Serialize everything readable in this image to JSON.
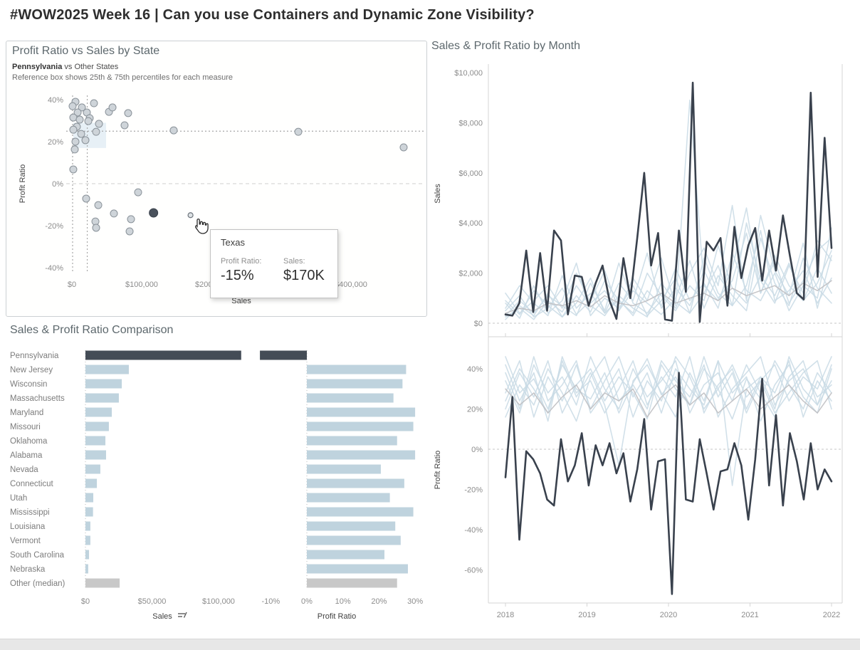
{
  "page": {
    "title": "#WOW2025 Week 16 | Can you use Containers and Dynamic Zone Visibility?"
  },
  "colors": {
    "dark_slate": "#444c56",
    "dark_line": "#39414d",
    "light_blue_bar": "#bfd3de",
    "light_blue_line": "#c9dbe5",
    "gray_bar": "#c8c8c8",
    "gray_line": "#bfbfc2",
    "ref_box": "#e7f0f6",
    "tick_text": "#8c8c8c",
    "label_text": "#7c7c7c",
    "axis_line": "#d5d5d5",
    "dot_fill": "#ced4d9",
    "dot_stroke": "#8a9299"
  },
  "scatter_panel": {
    "title": "Profit Ratio vs Sales by State",
    "subtitle_bold": "Pennsylvania",
    "subtitle_rest": " vs Other States",
    "note": "Reference box shows 25th & 75th percentiles for each measure",
    "x_axis": {
      "label": "Sales",
      "ticks": [
        "$0",
        "$100,000",
        "$200,000",
        "$300,000",
        "$400,000"
      ]
    },
    "y_axis": {
      "label": "Profit Ratio",
      "ticks": [
        "40%",
        "20%",
        "0%",
        "-20%",
        "-40%"
      ]
    }
  },
  "tooltip": {
    "title": "Texas",
    "fields": [
      {
        "label": "Profit Ratio:",
        "value": "-15%"
      },
      {
        "label": "Sales:",
        "value": "$170K"
      }
    ]
  },
  "bar_panel": {
    "title": "Sales & Profit Ratio Comparison",
    "sales_axis": {
      "label": "Sales",
      "ticks": [
        "$0",
        "$50,000",
        "$100,000"
      ]
    },
    "profit_axis": {
      "label": "Profit Ratio",
      "ticks": [
        "-10%",
        "0%",
        "10%",
        "20%",
        "30%"
      ]
    }
  },
  "month_panel": {
    "title": "Sales & Profit Ratio by Month",
    "sales_axis": {
      "label": "Sales",
      "ticks": [
        "$10,000",
        "$8,000",
        "$6,000",
        "$4,000",
        "$2,000",
        "$0"
      ]
    },
    "profit_axis": {
      "label": "Profit Ratio",
      "ticks": [
        "40%",
        "20%",
        "0%",
        "-20%",
        "-40%",
        "-60%"
      ]
    },
    "x_axis": {
      "ticks": [
        "2018",
        "2019",
        "2020",
        "2021",
        "2022"
      ]
    }
  },
  "chart_data": [
    {
      "type": "scatter",
      "title": "Profit Ratio vs Sales by State",
      "xlabel": "Sales",
      "ylabel": "Profit Ratio",
      "xlim": [
        -20000,
        490000
      ],
      "ylim": [
        -48,
        46
      ],
      "x_ticks": [
        0,
        100000,
        200000,
        300000,
        400000
      ],
      "y_ticks": [
        40,
        20,
        0,
        -20,
        -40
      ],
      "ref_box": {
        "sales": [
          2000,
          49000
        ],
        "profit": [
          17,
          29
        ]
      },
      "ref_lines": {
        "profit": [
          25,
          0
        ],
        "sales": [
          1000,
          22000
        ]
      },
      "points": [
        {
          "sales": 5100,
          "profit": 39.0,
          "kind": "other"
        },
        {
          "sales": 1000,
          "profit": 36.9,
          "kind": "other"
        },
        {
          "sales": 31600,
          "profit": 38.3,
          "kind": "other"
        },
        {
          "sales": 14300,
          "profit": 36.3,
          "kind": "other"
        },
        {
          "sales": 21400,
          "profit": 33.9,
          "kind": "other"
        },
        {
          "sales": 8200,
          "profit": 33.9,
          "kind": "other"
        },
        {
          "sales": 53100,
          "profit": 34.2,
          "kind": "other"
        },
        {
          "sales": 58200,
          "profit": 36.3,
          "kind": "other"
        },
        {
          "sales": 80600,
          "profit": 33.6,
          "kind": "other"
        },
        {
          "sales": 2000,
          "profit": 31.5,
          "kind": "other"
        },
        {
          "sales": 11200,
          "profit": 30.5,
          "kind": "other"
        },
        {
          "sales": 25500,
          "profit": 31.2,
          "kind": "other"
        },
        {
          "sales": 23500,
          "profit": 29.8,
          "kind": "other"
        },
        {
          "sales": 7100,
          "profit": 27.1,
          "kind": "other"
        },
        {
          "sales": 2000,
          "profit": 25.7,
          "kind": "other"
        },
        {
          "sales": 13300,
          "profit": 23.7,
          "kind": "other"
        },
        {
          "sales": 19400,
          "profit": 20.7,
          "kind": "other"
        },
        {
          "sales": 38800,
          "profit": 28.5,
          "kind": "other"
        },
        {
          "sales": 34700,
          "profit": 24.7,
          "kind": "other"
        },
        {
          "sales": 75500,
          "profit": 27.8,
          "kind": "other"
        },
        {
          "sales": 145900,
          "profit": 25.4,
          "kind": "other"
        },
        {
          "sales": 5100,
          "profit": 20.0,
          "kind": "other"
        },
        {
          "sales": 4100,
          "profit": 16.3,
          "kind": "other"
        },
        {
          "sales": 2000,
          "profit": 6.8,
          "kind": "other"
        },
        {
          "sales": 324500,
          "profit": 24.7,
          "kind": "other"
        },
        {
          "sales": 475500,
          "profit": 17.3,
          "kind": "other"
        },
        {
          "sales": 94900,
          "profit": -4.1,
          "kind": "other"
        },
        {
          "sales": 20400,
          "profit": -7.1,
          "kind": "other"
        },
        {
          "sales": 37800,
          "profit": -10.2,
          "kind": "other"
        },
        {
          "sales": 60200,
          "profit": -14.2,
          "kind": "other"
        },
        {
          "sales": 117000,
          "profit": -13.9,
          "kind": "pennsylvania",
          "label": "Pennsylvania"
        },
        {
          "sales": 84700,
          "profit": -16.9,
          "kind": "other"
        },
        {
          "sales": 33700,
          "profit": -18.0,
          "kind": "other"
        },
        {
          "sales": 34700,
          "profit": -21.0,
          "kind": "other"
        },
        {
          "sales": 82700,
          "profit": -22.7,
          "kind": "other"
        },
        {
          "sales": 170000,
          "profit": -15.0,
          "kind": "hover",
          "label": "Texas"
        }
      ]
    },
    {
      "type": "bar",
      "title": "Sales & Profit Ratio Comparison",
      "orientation": "horizontal",
      "categories": [
        "Pennsylvania",
        "New Jersey",
        "Wisconsin",
        "Massachusetts",
        "Maryland",
        "Missouri",
        "Oklahoma",
        "Alabama",
        "Nevada",
        "Connecticut",
        "Utah",
        "Mississippi",
        "Louisiana",
        "Vermont",
        "South Carolina",
        "Nebraska",
        "Other (median)"
      ],
      "series": [
        {
          "name": "Sales",
          "values": [
            117000,
            32600,
            27300,
            25100,
            19800,
            17600,
            15000,
            15500,
            11200,
            8600,
            5900,
            5700,
            3700,
            3700,
            2700,
            2100,
            25700
          ]
        },
        {
          "name": "Profit Ratio",
          "values": [
            -13,
            27.5,
            26.5,
            24,
            30,
            29.5,
            25,
            30,
            20.5,
            27,
            23,
            29.5,
            24.5,
            26,
            21.5,
            28,
            25
          ]
        }
      ],
      "row_kinds": [
        "pennsylvania",
        "other",
        "other",
        "other",
        "other",
        "other",
        "other",
        "other",
        "other",
        "other",
        "other",
        "other",
        "other",
        "other",
        "other",
        "other",
        "median"
      ],
      "sales_xlim": [
        0,
        125000
      ],
      "profit_xlim": [
        -14,
        31
      ],
      "sales_ticks": [
        0,
        50000,
        100000
      ],
      "profit_ticks": [
        -10,
        0,
        10,
        20,
        30
      ]
    },
    {
      "type": "line",
      "title": "Sales by Month",
      "ylabel": "Sales",
      "ylim": [
        0,
        10000
      ],
      "y_ticks": [
        10000,
        8000,
        6000,
        4000,
        2000,
        0
      ],
      "x_years": [
        2018,
        2019,
        2020,
        2021,
        2022
      ],
      "pennsylvania": [
        350,
        300,
        800,
        2900,
        450,
        2800,
        500,
        3700,
        3300,
        350,
        1900,
        1850,
        700,
        1600,
        2300,
        900,
        170,
        2600,
        1000,
        3400,
        6000,
        2300,
        3600,
        150,
        100,
        3700,
        1250,
        9600,
        50,
        3250,
        2900,
        3400,
        700,
        3850,
        1800,
        3100,
        3800,
        1700,
        3700,
        2100,
        4300,
        2700,
        1200,
        950,
        9200,
        1850,
        7400,
        3000
      ],
      "median": [
        400,
        600,
        500,
        800,
        700,
        900,
        650,
        1100,
        800,
        700,
        900,
        1200,
        800,
        1000,
        1200,
        900,
        1400,
        1100,
        1300,
        1500,
        1100,
        1600,
        1300,
        1700
      ],
      "others": [
        [
          1200,
          400,
          900,
          1500,
          600,
          2000,
          800,
          1300,
          500,
          1800,
          900,
          2600,
          700,
          8900,
          1500,
          900,
          2200,
          4600,
          1200,
          2500,
          800,
          1700,
          2900,
          3400
        ],
        [
          300,
          900,
          400,
          1100,
          700,
          300,
          1600,
          500,
          2400,
          800,
          400,
          1200,
          600,
          2000,
          3000,
          1500,
          4700,
          900,
          4300,
          2100,
          1100,
          3200,
          600,
          2700
        ],
        [
          800,
          200,
          1500,
          400,
          900,
          2400,
          300,
          1000,
          600,
          1500,
          300,
          900,
          1800,
          400,
          2600,
          1200,
          700,
          4000,
          1700,
          800,
          2300,
          1200,
          3300,
          2500
        ],
        [
          150,
          700,
          300,
          1200,
          250,
          800,
          1800,
          400,
          950,
          300,
          1300,
          700,
          2200,
          900,
          1600,
          600,
          2800,
          1300,
          900,
          2000,
          500,
          1500,
          1000,
          3800
        ],
        [
          500,
          1100,
          250,
          600,
          1400,
          350,
          900,
          2100,
          500,
          1300,
          800,
          350,
          1000,
          2500,
          600,
          1900,
          1100,
          500,
          3400,
          1600,
          700,
          2600,
          1400,
          800
        ],
        [
          900,
          350,
          1300,
          700,
          250,
          1100,
          450,
          1700,
          900,
          400,
          2000,
          1100,
          500,
          1500,
          900,
          3100,
          1400,
          800,
          1900,
          1100,
          2400,
          900,
          1600,
          2900
        ],
        [
          250,
          600,
          150,
          900,
          450,
          1500,
          700,
          300,
          1100,
          600,
          250,
          1600,
          850,
          400,
          1200,
          2300,
          700,
          1500,
          3700,
          900,
          1300,
          2100,
          800,
          1800
        ],
        [
          600,
          1500,
          800,
          300,
          1900,
          600,
          1200,
          400,
          1600,
          900,
          2800,
          600,
          1400,
          700,
          2100,
          1000,
          1700,
          3600,
          1200,
          2700,
          1500,
          900,
          2200,
          1200
        ]
      ]
    },
    {
      "type": "line",
      "title": "Profit Ratio by Month",
      "ylabel": "Profit Ratio",
      "ylim": [
        -75,
        50
      ],
      "y_ticks": [
        40,
        20,
        0,
        -20,
        -40,
        -60
      ],
      "x_years": [
        2018,
        2019,
        2020,
        2021,
        2022
      ],
      "pennsylvania": [
        -14,
        26,
        -45,
        -1,
        -5,
        -12,
        -25,
        -28,
        5,
        -16,
        -8,
        8,
        -18,
        2,
        -8,
        3,
        -12,
        -2,
        -26,
        -10,
        15,
        -30,
        -6,
        -5,
        -72,
        38,
        -25,
        -26,
        5,
        -12,
        -30,
        -11,
        -10,
        3,
        -8,
        -35,
        -5,
        35,
        -18,
        17,
        -28,
        8,
        -6,
        -25,
        3,
        -20,
        -10,
        -16
      ],
      "median": [
        30,
        22,
        28,
        18,
        26,
        32,
        20,
        28,
        24,
        30,
        16,
        26,
        32,
        22,
        28,
        18,
        24,
        30,
        20,
        26,
        32,
        24,
        18,
        28
      ],
      "others": [
        [
          46,
          28,
          35,
          20,
          42,
          30,
          25,
          38,
          18,
          33,
          45,
          27,
          36,
          22,
          40,
          30,
          15,
          35,
          25,
          44,
          32,
          20,
          38,
          28
        ],
        [
          20,
          38,
          26,
          44,
          18,
          32,
          40,
          24,
          36,
          28,
          15,
          42,
          30,
          22,
          46,
          26,
          38,
          18,
          34,
          42,
          24,
          36,
          30,
          46
        ],
        [
          34,
          18,
          42,
          28,
          36,
          22,
          46,
          30,
          20,
          40,
          26,
          34,
          44,
          18,
          32,
          38,
          24,
          42,
          28,
          16,
          36,
          44,
          22,
          34
        ],
        [
          28,
          44,
          16,
          36,
          24,
          42,
          20,
          34,
          46,
          26,
          38,
          18,
          40,
          30,
          22,
          44,
          28,
          36,
          14,
          32,
          42,
          26,
          18,
          40
        ],
        [
          42,
          24,
          38,
          14,
          46,
          28,
          34,
          18,
          30,
          44,
          22,
          36,
          26,
          46,
          18,
          32,
          40,
          20,
          36,
          28,
          44,
          16,
          34,
          24
        ],
        [
          16,
          32,
          22,
          40,
          28,
          14,
          36,
          46,
          24,
          32,
          20,
          44,
          34,
          26,
          42,
          16,
          30,
          38,
          46,
          22,
          34,
          40,
          26,
          32
        ],
        [
          38,
          20,
          46,
          24,
          32,
          44,
          18,
          28,
          40,
          16,
          34,
          24,
          46,
          36,
          20,
          30,
          42,
          26,
          34,
          18,
          28,
          38,
          44,
          20
        ],
        [
          24,
          40,
          30,
          18,
          44,
          26,
          38,
          22,
          -8,
          34,
          42,
          28,
          16,
          38,
          24,
          44,
          -18,
          30,
          36,
          20,
          46,
          30,
          22,
          42
        ]
      ]
    }
  ]
}
